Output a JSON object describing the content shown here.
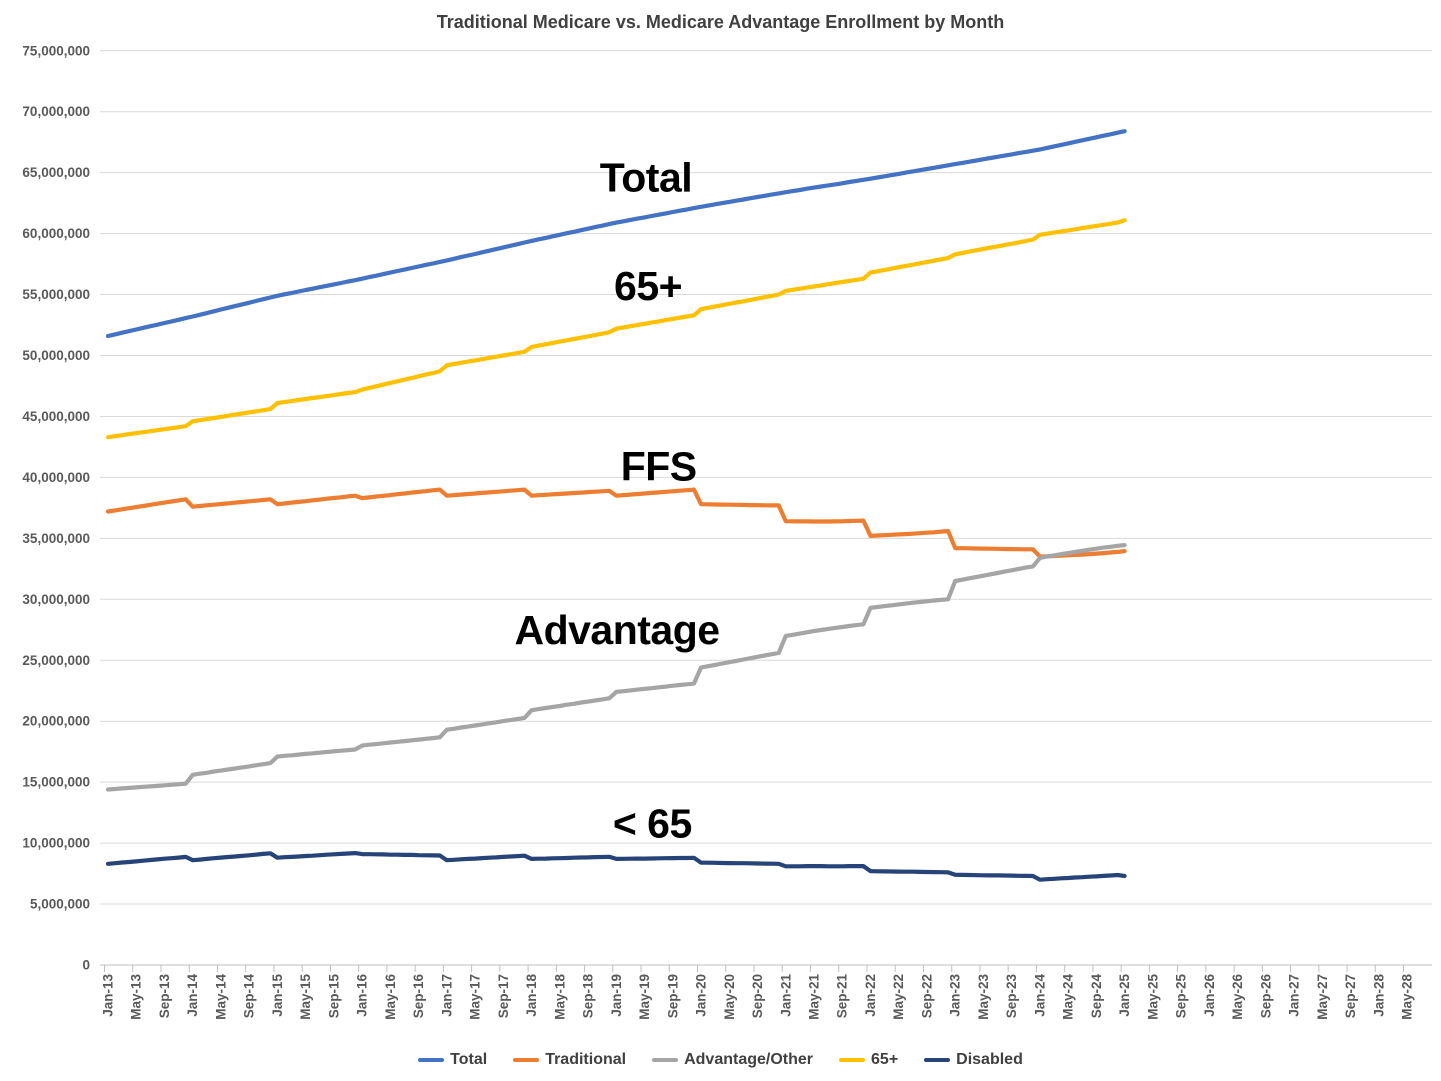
{
  "styles": {
    "background": "#FFFFFF",
    "title_color": "#404040",
    "axis_text_color": "#595959",
    "gridline_color": "#D9D9D9",
    "axis_line_color": "#BFBFBF",
    "annotation_color": "#000000"
  },
  "chart_data": {
    "type": "line",
    "title": "Traditional Medicare vs. Medicare Advantage Enrollment by Month",
    "x_unit": "month",
    "x_start_label": "Jan-13",
    "x_last_data_label": "Jan-25",
    "x_tick_interval_months": 4,
    "x_tick_labels": [
      "Jan-13",
      "May-13",
      "Sep-13",
      "Jan-14",
      "May-14",
      "Sep-14",
      "Jan-15",
      "May-15",
      "Sep-15",
      "Jan-16",
      "May-16",
      "Sep-16",
      "Jan-17",
      "May-17",
      "Sep-17",
      "Jan-18",
      "May-18",
      "Sep-18",
      "Jan-19",
      "May-19",
      "Sep-19",
      "Jan-20",
      "May-20",
      "Sep-20",
      "Jan-21",
      "May-21",
      "Sep-21",
      "Jan-22",
      "May-22",
      "Sep-22",
      "Jan-23",
      "May-23",
      "Sep-23",
      "Jan-24",
      "May-24",
      "Sep-24",
      "Jan-25",
      "May-25",
      "Sep-25",
      "Jan-26",
      "May-26",
      "Sep-26",
      "Jan-27",
      "May-27",
      "Sep-27",
      "Jan-28",
      "May-28"
    ],
    "ylim": [
      0,
      75000000
    ],
    "y_tick_step": 5000000,
    "values_unit": "millions of enrollees (monthly, Jan-13 to Jan-25)",
    "grid": "horizontal only",
    "legend_position": "bottom",
    "series": [
      {
        "name": "Total",
        "color": "#4472C4",
        "values": [
          51.6,
          51.73,
          51.87,
          52.0,
          52.13,
          52.27,
          52.4,
          52.53,
          52.67,
          52.8,
          52.93,
          53.07,
          53.2,
          53.34,
          53.48,
          53.63,
          53.77,
          53.91,
          54.05,
          54.19,
          54.33,
          54.48,
          54.62,
          54.76,
          54.9,
          55.02,
          55.13,
          55.25,
          55.37,
          55.48,
          55.6,
          55.72,
          55.83,
          55.95,
          56.07,
          56.18,
          56.3,
          56.43,
          56.55,
          56.68,
          56.8,
          56.93,
          57.05,
          57.18,
          57.3,
          57.43,
          57.55,
          57.68,
          57.8,
          57.93,
          58.07,
          58.2,
          58.33,
          58.47,
          58.6,
          58.73,
          58.87,
          59.0,
          59.13,
          59.27,
          59.4,
          59.53,
          59.65,
          59.78,
          59.9,
          60.03,
          60.15,
          60.28,
          60.4,
          60.53,
          60.65,
          60.78,
          60.9,
          61.01,
          61.12,
          61.23,
          61.33,
          61.44,
          61.55,
          61.66,
          61.77,
          61.88,
          61.98,
          62.09,
          62.2,
          62.3,
          62.4,
          62.5,
          62.6,
          62.7,
          62.8,
          62.9,
          63.0,
          63.1,
          63.2,
          63.3,
          63.4,
          63.49,
          63.58,
          63.68,
          63.77,
          63.86,
          63.95,
          64.04,
          64.13,
          64.23,
          64.32,
          64.41,
          64.5,
          64.6,
          64.7,
          64.8,
          64.9,
          65.0,
          65.1,
          65.2,
          65.3,
          65.4,
          65.5,
          65.6,
          65.7,
          65.8,
          65.9,
          66.0,
          66.1,
          66.2,
          66.3,
          66.4,
          66.5,
          66.6,
          66.7,
          66.8,
          66.9,
          67.03,
          67.15,
          67.28,
          67.4,
          67.53,
          67.65,
          67.78,
          67.9,
          68.03,
          68.15,
          68.28,
          68.4
        ]
      },
      {
        "name": "Traditional",
        "color": "#ED7D31",
        "values": [
          37.2,
          37.29,
          37.38,
          37.47,
          37.56,
          37.65,
          37.75,
          37.84,
          37.93,
          38.02,
          38.11,
          38.2,
          37.6,
          37.65,
          37.71,
          37.76,
          37.82,
          37.87,
          37.93,
          37.98,
          38.04,
          38.09,
          38.15,
          38.2,
          37.8,
          37.86,
          37.93,
          37.99,
          38.05,
          38.12,
          38.18,
          38.25,
          38.31,
          38.37,
          38.44,
          38.5,
          38.3,
          38.36,
          38.43,
          38.49,
          38.55,
          38.62,
          38.68,
          38.75,
          38.81,
          38.87,
          38.94,
          39.0,
          38.5,
          38.55,
          38.59,
          38.64,
          38.68,
          38.73,
          38.77,
          38.82,
          38.86,
          38.91,
          38.95,
          39.0,
          38.5,
          38.54,
          38.57,
          38.61,
          38.65,
          38.68,
          38.72,
          38.75,
          38.79,
          38.83,
          38.86,
          38.9,
          38.5,
          38.55,
          38.59,
          38.64,
          38.68,
          38.73,
          38.77,
          38.82,
          38.86,
          38.91,
          38.95,
          39.0,
          37.8,
          37.79,
          37.78,
          37.77,
          37.76,
          37.75,
          37.74,
          37.73,
          37.72,
          37.71,
          37.7,
          37.7,
          36.4,
          36.4,
          36.39,
          36.39,
          36.38,
          36.38,
          36.38,
          36.39,
          36.4,
          36.42,
          36.44,
          36.46,
          35.2,
          35.23,
          35.26,
          35.29,
          35.32,
          35.35,
          35.38,
          35.42,
          35.46,
          35.5,
          35.55,
          35.6,
          34.2,
          34.19,
          34.18,
          34.17,
          34.16,
          34.15,
          34.14,
          34.13,
          34.12,
          34.11,
          34.1,
          34.1,
          33.5,
          33.52,
          33.55,
          33.58,
          33.61,
          33.64,
          33.67,
          33.71,
          33.75,
          33.79,
          33.84,
          33.89,
          33.95
        ]
      },
      {
        "name": "Advantage/Other",
        "color": "#A5A5A5",
        "values": [
          14.4,
          14.44,
          14.49,
          14.53,
          14.57,
          14.62,
          14.65,
          14.69,
          14.74,
          14.78,
          14.82,
          14.87,
          15.6,
          15.69,
          15.77,
          15.87,
          15.95,
          16.04,
          16.12,
          16.21,
          16.29,
          16.39,
          16.47,
          16.56,
          17.1,
          17.16,
          17.2,
          17.26,
          17.32,
          17.36,
          17.42,
          17.47,
          17.52,
          17.58,
          17.63,
          17.68,
          18.0,
          18.07,
          18.12,
          18.19,
          18.25,
          18.31,
          18.37,
          18.43,
          18.49,
          18.56,
          18.61,
          18.68,
          19.3,
          19.38,
          19.48,
          19.56,
          19.65,
          19.74,
          19.83,
          19.91,
          20.01,
          20.09,
          20.18,
          20.27,
          20.9,
          20.99,
          21.08,
          21.17,
          21.25,
          21.35,
          21.43,
          21.53,
          21.61,
          21.7,
          21.79,
          21.88,
          22.4,
          22.46,
          22.53,
          22.59,
          22.65,
          22.71,
          22.78,
          22.84,
          22.91,
          22.97,
          23.03,
          23.09,
          24.4,
          24.51,
          24.62,
          24.73,
          24.84,
          24.95,
          25.06,
          25.17,
          25.28,
          25.39,
          25.5,
          25.6,
          27.0,
          27.09,
          27.19,
          27.29,
          27.39,
          27.48,
          27.57,
          27.65,
          27.73,
          27.81,
          27.88,
          27.95,
          29.3,
          29.37,
          29.44,
          29.51,
          29.58,
          29.65,
          29.72,
          29.78,
          29.84,
          29.9,
          29.95,
          30.0,
          31.5,
          31.61,
          31.72,
          31.83,
          31.94,
          32.05,
          32.16,
          32.27,
          32.38,
          32.49,
          32.6,
          32.7,
          33.4,
          33.51,
          33.6,
          33.7,
          33.79,
          33.89,
          33.98,
          34.07,
          34.15,
          34.24,
          34.31,
          34.39,
          34.45
        ]
      },
      {
        "name": "65+",
        "color": "#FFC000",
        "values": [
          43.3,
          43.38,
          43.46,
          43.55,
          43.63,
          43.71,
          43.79,
          43.87,
          43.95,
          44.04,
          44.12,
          44.2,
          44.6,
          44.69,
          44.78,
          44.87,
          44.96,
          45.05,
          45.15,
          45.24,
          45.33,
          45.42,
          45.51,
          45.6,
          46.1,
          46.18,
          46.26,
          46.35,
          46.43,
          46.51,
          46.59,
          46.67,
          46.75,
          46.84,
          46.92,
          47.0,
          47.2,
          47.34,
          47.47,
          47.61,
          47.75,
          47.88,
          48.02,
          48.15,
          48.29,
          48.43,
          48.56,
          48.7,
          49.2,
          49.3,
          49.4,
          49.5,
          49.6,
          49.7,
          49.8,
          49.9,
          50.0,
          50.1,
          50.2,
          50.3,
          50.7,
          50.81,
          50.92,
          51.03,
          51.14,
          51.25,
          51.35,
          51.46,
          51.57,
          51.68,
          51.79,
          51.9,
          52.2,
          52.3,
          52.4,
          52.5,
          52.6,
          52.7,
          52.8,
          52.9,
          53.0,
          53.1,
          53.2,
          53.3,
          53.8,
          53.91,
          54.02,
          54.13,
          54.24,
          54.35,
          54.45,
          54.56,
          54.67,
          54.78,
          54.89,
          55.0,
          55.3,
          55.39,
          55.48,
          55.57,
          55.66,
          55.75,
          55.85,
          55.94,
          56.03,
          56.12,
          56.21,
          56.3,
          56.8,
          56.91,
          57.02,
          57.13,
          57.24,
          57.35,
          57.45,
          57.56,
          57.67,
          57.78,
          57.89,
          58.0,
          58.3,
          58.41,
          58.52,
          58.63,
          58.74,
          58.85,
          58.95,
          59.06,
          59.17,
          59.28,
          59.39,
          59.5,
          59.9,
          59.99,
          60.08,
          60.17,
          60.26,
          60.35,
          60.45,
          60.54,
          60.63,
          60.72,
          60.81,
          60.9,
          61.1
        ]
      },
      {
        "name": "Disabled",
        "color": "#264478",
        "values": [
          8.3,
          8.35,
          8.41,
          8.45,
          8.5,
          8.56,
          8.61,
          8.66,
          8.72,
          8.76,
          8.81,
          8.87,
          8.6,
          8.65,
          8.7,
          8.76,
          8.81,
          8.86,
          8.9,
          8.95,
          9.0,
          9.06,
          9.11,
          9.16,
          8.8,
          8.84,
          8.87,
          8.9,
          8.94,
          8.97,
          9.01,
          9.05,
          9.08,
          9.11,
          9.15,
          9.18,
          9.1,
          9.09,
          9.08,
          9.07,
          9.05,
          9.05,
          9.03,
          9.03,
          9.01,
          9.0,
          8.99,
          8.98,
          8.6,
          8.63,
          8.67,
          8.7,
          8.73,
          8.77,
          8.8,
          8.83,
          8.87,
          8.9,
          8.93,
          8.97,
          8.7,
          8.72,
          8.73,
          8.75,
          8.76,
          8.78,
          8.8,
          8.82,
          8.83,
          8.85,
          8.86,
          8.88,
          8.7,
          8.71,
          8.72,
          8.73,
          8.73,
          8.74,
          8.75,
          8.76,
          8.77,
          8.78,
          8.78,
          8.79,
          8.4,
          8.39,
          8.38,
          8.37,
          8.36,
          8.35,
          8.35,
          8.34,
          8.33,
          8.32,
          8.31,
          8.3,
          8.1,
          8.1,
          8.1,
          8.11,
          8.11,
          8.11,
          8.1,
          8.1,
          8.1,
          8.11,
          8.11,
          8.11,
          7.7,
          7.69,
          7.68,
          7.67,
          7.66,
          7.65,
          7.65,
          7.64,
          7.63,
          7.62,
          7.61,
          7.6,
          7.4,
          7.39,
          7.38,
          7.37,
          7.36,
          7.35,
          7.35,
          7.34,
          7.33,
          7.32,
          7.31,
          7.3,
          7.0,
          7.04,
          7.07,
          7.11,
          7.14,
          7.18,
          7.2,
          7.24,
          7.27,
          7.31,
          7.34,
          7.38,
          7.3
        ]
      }
    ],
    "annotations": [
      {
        "text": "Total",
        "month_index": 76.2,
        "value_millions": 64.6
      },
      {
        "text": "65+",
        "month_index": 76.5,
        "value_millions": 55.7
      },
      {
        "text": "FFS",
        "month_index": 78.0,
        "value_millions": 40.9
      },
      {
        "text": "Advantage",
        "month_index": 72.1,
        "value_millions": 27.5
      },
      {
        "text": "< 65",
        "month_index": 77.1,
        "value_millions": 11.6
      }
    ]
  }
}
